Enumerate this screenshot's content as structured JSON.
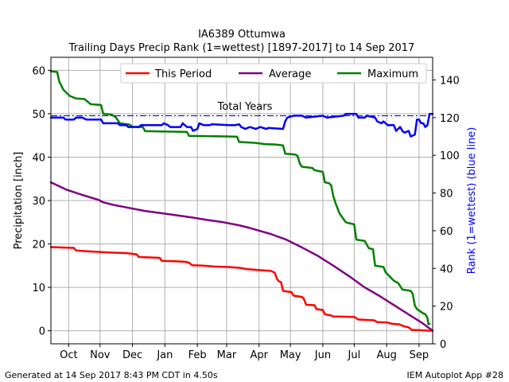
{
  "chart_data": {
    "type": "line",
    "title_line1": "IA6389 Ottumwa",
    "title_line2": "Trailing Days Precip Rank (1=wettest) [1897-2017] to 14 Sep 2017",
    "ylabel_left": "Precipitation [inch]",
    "ylabel_right": "Rank (1=wettest) (blue line)",
    "x_ticks": [
      "Oct",
      "Nov",
      "Dec",
      "Jan",
      "Feb",
      "Mar",
      "Apr",
      "May",
      "Jun",
      "Jul",
      "Aug",
      "Sep"
    ],
    "x_range_days": [
      0,
      365
    ],
    "ylim_left": [
      -3,
      63
    ],
    "yticks_left": [
      "0",
      "10",
      "20",
      "30",
      "40",
      "50",
      "60"
    ],
    "ylim_right": [
      0,
      152
    ],
    "yticks_right": [
      "0",
      "20",
      "40",
      "60",
      "80",
      "100",
      "120",
      "140"
    ],
    "grid": true,
    "legend_position": "top-right",
    "annotation": "Total Years",
    "total_years_rank": 121,
    "series": [
      {
        "name": "This Period",
        "axis": "left",
        "color": "#ff0000",
        "points": [
          [
            0,
            19.3
          ],
          [
            8,
            19.2
          ],
          [
            22,
            19.1
          ],
          [
            24,
            18.5
          ],
          [
            35,
            18.3
          ],
          [
            50,
            18.1
          ],
          [
            60,
            18.0
          ],
          [
            72,
            17.9
          ],
          [
            82,
            17.6
          ],
          [
            84,
            17.0
          ],
          [
            95,
            16.9
          ],
          [
            104,
            16.8
          ],
          [
            106,
            16.1
          ],
          [
            120,
            16.0
          ],
          [
            128,
            15.9
          ],
          [
            132,
            15.7
          ],
          [
            135,
            15.1
          ],
          [
            145,
            15.0
          ],
          [
            152,
            14.9
          ],
          [
            155,
            14.8
          ],
          [
            170,
            14.7
          ],
          [
            180,
            14.5
          ],
          [
            188,
            14.2
          ],
          [
            198,
            14.0
          ],
          [
            210,
            13.8
          ],
          [
            214,
            13.4
          ],
          [
            216,
            12.0
          ],
          [
            218,
            11.4
          ],
          [
            220,
            11.2
          ],
          [
            222,
            9.2
          ],
          [
            230,
            8.9
          ],
          [
            232,
            8.1
          ],
          [
            240,
            7.8
          ],
          [
            242,
            7.3
          ],
          [
            244,
            6.0
          ],
          [
            252,
            5.9
          ],
          [
            254,
            5.0
          ],
          [
            260,
            4.8
          ],
          [
            262,
            3.8
          ],
          [
            268,
            3.5
          ],
          [
            270,
            3.3
          ],
          [
            290,
            3.2
          ],
          [
            294,
            2.6
          ],
          [
            302,
            2.5
          ],
          [
            309,
            2.4
          ],
          [
            312,
            2.0
          ],
          [
            322,
            1.9
          ],
          [
            326,
            1.6
          ],
          [
            333,
            1.5
          ],
          [
            338,
            1.0
          ],
          [
            342,
            0.8
          ],
          [
            345,
            0.2
          ],
          [
            356,
            0.1
          ],
          [
            360,
            0.05
          ],
          [
            365,
            0.0
          ]
        ]
      },
      {
        "name": "Average",
        "axis": "left",
        "color": "#800080",
        "points": [
          [
            0,
            34.2
          ],
          [
            15,
            32.5
          ],
          [
            30,
            31.3
          ],
          [
            45,
            30.2
          ],
          [
            50,
            29.6
          ],
          [
            60,
            29.0
          ],
          [
            75,
            28.3
          ],
          [
            90,
            27.6
          ],
          [
            105,
            27.1
          ],
          [
            120,
            26.6
          ],
          [
            135,
            26.1
          ],
          [
            150,
            25.5
          ],
          [
            165,
            25.0
          ],
          [
            180,
            24.3
          ],
          [
            190,
            23.7
          ],
          [
            200,
            23.0
          ],
          [
            210,
            22.3
          ],
          [
            225,
            21.0
          ],
          [
            240,
            19.2
          ],
          [
            255,
            17.3
          ],
          [
            270,
            15.0
          ],
          [
            285,
            12.6
          ],
          [
            300,
            10.0
          ],
          [
            315,
            7.9
          ],
          [
            330,
            5.6
          ],
          [
            345,
            3.3
          ],
          [
            355,
            1.8
          ],
          [
            365,
            0.0
          ]
        ]
      },
      {
        "name": "Maximum",
        "axis": "left",
        "color": "#008000",
        "points": [
          [
            0,
            59.8
          ],
          [
            6,
            59.6
          ],
          [
            8,
            57.4
          ],
          [
            12,
            55.5
          ],
          [
            18,
            54.1
          ],
          [
            24,
            53.5
          ],
          [
            32,
            53.4
          ],
          [
            38,
            52.2
          ],
          [
            48,
            52.0
          ],
          [
            50,
            50.0
          ],
          [
            58,
            49.8
          ],
          [
            62,
            49.2
          ],
          [
            66,
            47.8
          ],
          [
            75,
            47.5
          ],
          [
            78,
            47.0
          ],
          [
            88,
            46.9
          ],
          [
            90,
            46.0
          ],
          [
            108,
            45.9
          ],
          [
            130,
            45.8
          ],
          [
            132,
            44.9
          ],
          [
            160,
            44.8
          ],
          [
            178,
            44.7
          ],
          [
            180,
            43.5
          ],
          [
            195,
            43.3
          ],
          [
            205,
            43.0
          ],
          [
            215,
            42.9
          ],
          [
            222,
            42.7
          ],
          [
            224,
            40.8
          ],
          [
            234,
            40.6
          ],
          [
            236,
            40.2
          ],
          [
            238,
            38.5
          ],
          [
            240,
            37.8
          ],
          [
            250,
            37.5
          ],
          [
            252,
            37.0
          ],
          [
            256,
            36.8
          ],
          [
            260,
            36.6
          ],
          [
            262,
            34.2
          ],
          [
            266,
            34.0
          ],
          [
            268,
            33.5
          ],
          [
            270,
            31.0
          ],
          [
            272,
            29.5
          ],
          [
            276,
            27.0
          ],
          [
            282,
            25.0
          ],
          [
            290,
            24.5
          ],
          [
            292,
            21.0
          ],
          [
            300,
            20.7
          ],
          [
            304,
            19.0
          ],
          [
            308,
            18.8
          ],
          [
            310,
            15.0
          ],
          [
            318,
            14.7
          ],
          [
            320,
            13.5
          ],
          [
            324,
            12.5
          ],
          [
            328,
            11.5
          ],
          [
            332,
            11.0
          ],
          [
            336,
            9.5
          ],
          [
            344,
            9.2
          ],
          [
            346,
            8.5
          ],
          [
            348,
            5.8
          ],
          [
            350,
            5.0
          ],
          [
            356,
            4.0
          ],
          [
            358,
            3.8
          ],
          [
            360,
            3.0
          ],
          [
            361,
            1.5
          ],
          [
            362,
            1.6
          ]
        ]
      },
      {
        "name": "Rank",
        "axis": "right",
        "color": "#0000ff",
        "points": [
          [
            0,
            120
          ],
          [
            12,
            120
          ],
          [
            14,
            119
          ],
          [
            22,
            119
          ],
          [
            24,
            120
          ],
          [
            30,
            120
          ],
          [
            34,
            119
          ],
          [
            48,
            119
          ],
          [
            50,
            117
          ],
          [
            64,
            117
          ],
          [
            66,
            116
          ],
          [
            72,
            116
          ],
          [
            74,
            115
          ],
          [
            84,
            115
          ],
          [
            86,
            116
          ],
          [
            106,
            116
          ],
          [
            108,
            117
          ],
          [
            112,
            116
          ],
          [
            114,
            115
          ],
          [
            124,
            115
          ],
          [
            126,
            117
          ],
          [
            130,
            115
          ],
          [
            134,
            115
          ],
          [
            136,
            113
          ],
          [
            140,
            114
          ],
          [
            142,
            117
          ],
          [
            146,
            116
          ],
          [
            152,
            116
          ],
          [
            154,
            116.5
          ],
          [
            170,
            116
          ],
          [
            176,
            116
          ],
          [
            180,
            116.5
          ],
          [
            182,
            115
          ],
          [
            186,
            114
          ],
          [
            190,
            115
          ],
          [
            196,
            114
          ],
          [
            200,
            115
          ],
          [
            206,
            114
          ],
          [
            208,
            114.5
          ],
          [
            222,
            114
          ],
          [
            224,
            118
          ],
          [
            226,
            120
          ],
          [
            232,
            121
          ],
          [
            240,
            121
          ],
          [
            244,
            120
          ],
          [
            260,
            121
          ],
          [
            264,
            120
          ],
          [
            280,
            121
          ],
          [
            282,
            122
          ],
          [
            292,
            122
          ],
          [
            294,
            120
          ],
          [
            300,
            120
          ],
          [
            302,
            121
          ],
          [
            310,
            120
          ],
          [
            312,
            118
          ],
          [
            316,
            117
          ],
          [
            318,
            118
          ],
          [
            322,
            116
          ],
          [
            328,
            116
          ],
          [
            330,
            113
          ],
          [
            334,
            115
          ],
          [
            336,
            113
          ],
          [
            338,
            112
          ],
          [
            342,
            113
          ],
          [
            344,
            110
          ],
          [
            348,
            111
          ],
          [
            350,
            119
          ],
          [
            352,
            119
          ],
          [
            354,
            117
          ],
          [
            356,
            117
          ],
          [
            358,
            115
          ],
          [
            360,
            116
          ],
          [
            362,
            122
          ],
          [
            365,
            122
          ]
        ]
      }
    ]
  },
  "footer": {
    "left": "Generated at 14 Sep 2017 8:43 PM CDT in 4.50s",
    "right": "IEM Autoplot App #28"
  }
}
